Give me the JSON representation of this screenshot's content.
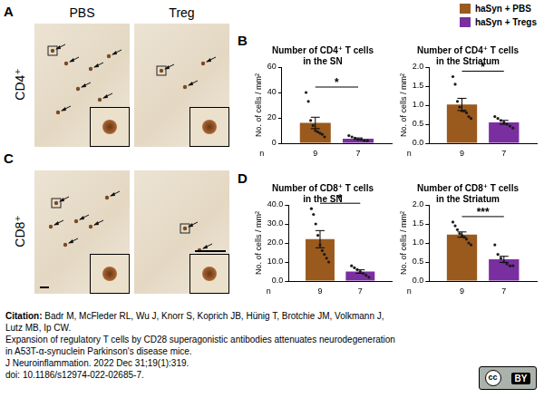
{
  "images": {
    "columns": [
      "PBS",
      "Treg"
    ],
    "rows": [
      {
        "panel": "A",
        "label": "CD4⁺"
      },
      {
        "panel": "C",
        "label": "CD8⁺"
      }
    ]
  },
  "chart_data": [
    {
      "type": "bar",
      "panel": "B",
      "title": "Number of CD4⁺ T cells in the SN",
      "y_label": "No. of cells / mm²",
      "categories": [
        null
      ],
      "ylim": [
        0,
        60
      ],
      "yticks": [
        0,
        20,
        40,
        60
      ],
      "grid": false,
      "tick_labels": "y",
      "legend": "top-right",
      "n_label": "n",
      "significance": "*",
      "series": [
        {
          "name": "haSyn + PBS",
          "color": "#9a5a1e",
          "values": [
            16
          ],
          "error": [
            4.5
          ],
          "n": [
            9
          ],
          "points": [
            [
              40,
              33,
              18,
              14,
              10,
              9,
              8,
              7,
              5
            ]
          ]
        },
        {
          "name": "haSyn + Tregs",
          "color": "#7a2fa0",
          "values": [
            3.6
          ],
          "error": [
            0.6
          ],
          "n": [
            7
          ],
          "points": [
            [
              6,
              5,
              4,
              3,
              3,
              2,
              2
            ]
          ]
        }
      ]
    },
    {
      "type": "bar",
      "panel": "B",
      "title": "Number of CD4⁺ T cells in the Striatum",
      "y_label": "No. of cells / mm²",
      "categories": [
        null
      ],
      "ylim": [
        0,
        2
      ],
      "yticks": [
        {
          "value": 0,
          "label": "0.0"
        },
        {
          "value": 0.5,
          "label": "0.5"
        },
        {
          "value": 1,
          "label": "1.0"
        },
        {
          "value": 1.5,
          "label": "1.5"
        },
        {
          "value": 2,
          "label": "2.0"
        }
      ],
      "grid": false,
      "tick_labels": "y",
      "n_label": "n",
      "significance": "*",
      "series": [
        {
          "name": "haSyn + PBS",
          "color": "#9a5a1e",
          "values": [
            1.02
          ],
          "error": [
            0.16
          ],
          "n": [
            9
          ],
          "points": [
            [
              1.75,
              1.55,
              1.1,
              0.95,
              0.85,
              0.85,
              0.8,
              0.7,
              0.65
            ]
          ]
        },
        {
          "name": "haSyn + Tregs",
          "color": "#7a2fa0",
          "values": [
            0.55
          ],
          "error": [
            0.05
          ],
          "n": [
            7
          ],
          "points": [
            [
              0.7,
              0.65,
              0.6,
              0.55,
              0.5,
              0.45,
              0.4
            ]
          ]
        }
      ]
    },
    {
      "type": "bar",
      "panel": "D",
      "title": "Number of CD8⁺ T cells in the SN",
      "y_label": "No. of cells / mm²",
      "categories": [
        null
      ],
      "ylim": [
        0,
        40
      ],
      "yticks": [
        {
          "value": 0,
          "label": "0.0"
        },
        {
          "value": 10,
          "label": "10.0"
        },
        {
          "value": 20,
          "label": "20.0"
        },
        {
          "value": 30,
          "label": "30.0"
        },
        {
          "value": 40,
          "label": "40.0"
        }
      ],
      "grid": false,
      "tick_labels": "y",
      "n_label": "n",
      "significance": "*",
      "series": [
        {
          "name": "haSyn + PBS",
          "color": "#9a5a1e",
          "values": [
            22
          ],
          "error": [
            4.5
          ],
          "n": [
            9
          ],
          "points": [
            [
              38,
              35,
              30,
              24,
              19,
              16,
              14,
              12,
              10
            ]
          ]
        },
        {
          "name": "haSyn + Tregs",
          "color": "#7a2fa0",
          "values": [
            5
          ],
          "error": [
            0.9
          ],
          "n": [
            7
          ],
          "points": [
            [
              8,
              7,
              6,
              5,
              4,
              3,
              2
            ]
          ]
        }
      ]
    },
    {
      "type": "bar",
      "panel": "D",
      "title": "Number of CD8⁺ T cells in the Striatum",
      "y_label": "No. of cells / mm²",
      "categories": [
        null
      ],
      "ylim": [
        0,
        2
      ],
      "yticks": [
        {
          "value": 0,
          "label": "0.0"
        },
        {
          "value": 0.5,
          "label": "0.5"
        },
        {
          "value": 1,
          "label": "1.0"
        },
        {
          "value": 1.5,
          "label": "1.5"
        },
        {
          "value": 2,
          "label": "2.0"
        }
      ],
      "grid": false,
      "tick_labels": "y",
      "n_label": "n",
      "significance": "***",
      "series": [
        {
          "name": "haSyn + PBS",
          "color": "#9a5a1e",
          "values": [
            1.22
          ],
          "error": [
            0.07
          ],
          "n": [
            9
          ],
          "points": [
            [
              1.55,
              1.45,
              1.35,
              1.25,
              1.2,
              1.15,
              1.1,
              1.0,
              0.95
            ]
          ]
        },
        {
          "name": "haSyn + Tregs",
          "color": "#7a2fa0",
          "values": [
            0.57
          ],
          "error": [
            0.08
          ],
          "n": [
            7
          ],
          "points": [
            [
              0.95,
              0.7,
              0.6,
              0.5,
              0.45,
              0.4,
              0.4
            ]
          ]
        }
      ]
    }
  ],
  "citation": {
    "label": "Citation:",
    "lines": [
      "Badr M, McFleder RL, Wu J, Knorr S, Koprich JB, Hünig T, Brotchie JM, Volkmann J,",
      "Lutz MB, Ip CW.",
      "Expansion of regulatory T cells by CD28 superagonistic antibodies attenuates neurodegeneration",
      "in A53T-α-synuclein Parkinson's disease mice.",
      "J Neuroinflammation. 2022 Dec 31;19(1):319.",
      "doi: 10.1186/s12974-022-02685-7."
    ]
  },
  "license": {
    "logo": "cc",
    "label": "BY"
  }
}
